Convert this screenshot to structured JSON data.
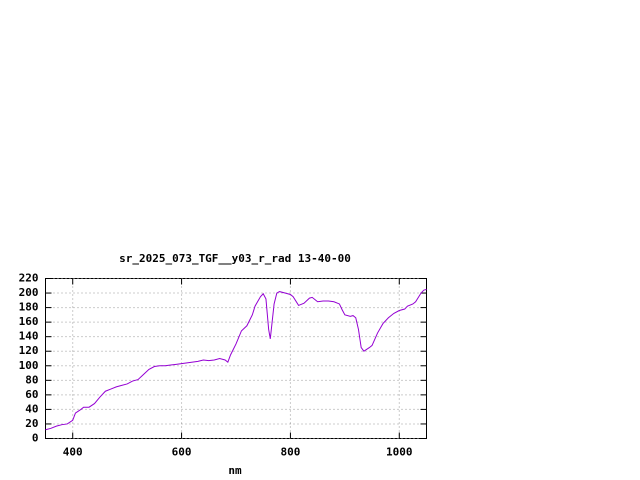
{
  "chart_data": {
    "type": "line",
    "title": "sr_2025_073_TGF__y03_r_rad 13-40-00",
    "x_label": "nm",
    "x": [
      350,
      360,
      370,
      380,
      390,
      400,
      405,
      415,
      420,
      430,
      440,
      450,
      460,
      470,
      480,
      490,
      500,
      510,
      520,
      530,
      540,
      550,
      560,
      570,
      580,
      590,
      600,
      610,
      620,
      630,
      640,
      650,
      660,
      670,
      680,
      685,
      690,
      700,
      710,
      720,
      730,
      735,
      745,
      750,
      755,
      760,
      763,
      770,
      775,
      780,
      790,
      800,
      805,
      815,
      825,
      835,
      840,
      850,
      860,
      870,
      880,
      890,
      895,
      900,
      910,
      915,
      920,
      925,
      930,
      935,
      945,
      950,
      960,
      970,
      980,
      990,
      1000,
      1010,
      1015,
      1025,
      1030,
      1040,
      1045,
      1050
    ],
    "series": [
      {
        "name": "sr_2025_073_TGF__y03_r_rad",
        "color": "#9400d3",
        "values": [
          12,
          14,
          17,
          19,
          20,
          25,
          35,
          40,
          43,
          43,
          48,
          57,
          65,
          68,
          71,
          73,
          75,
          79,
          81,
          88,
          95,
          99,
          100,
          100,
          101,
          102,
          103,
          104,
          105,
          106,
          108,
          107,
          108,
          110,
          108,
          105,
          115,
          130,
          148,
          155,
          170,
          182,
          195,
          199,
          192,
          150,
          137,
          185,
          200,
          202,
          200,
          198,
          195,
          183,
          186,
          193,
          194,
          188,
          189,
          189,
          188,
          185,
          177,
          170,
          168,
          169,
          166,
          150,
          125,
          120,
          125,
          128,
          145,
          158,
          166,
          172,
          176,
          178,
          182,
          185,
          188,
          200,
          204,
          205
        ]
      }
    ],
    "xlim": [
      350,
      1050
    ],
    "ylim": [
      0,
      220
    ],
    "xticks": [
      400,
      600,
      800,
      1000
    ],
    "yticks": [
      0,
      20,
      40,
      60,
      80,
      100,
      120,
      140,
      160,
      180,
      200,
      220
    ],
    "grid": true
  }
}
